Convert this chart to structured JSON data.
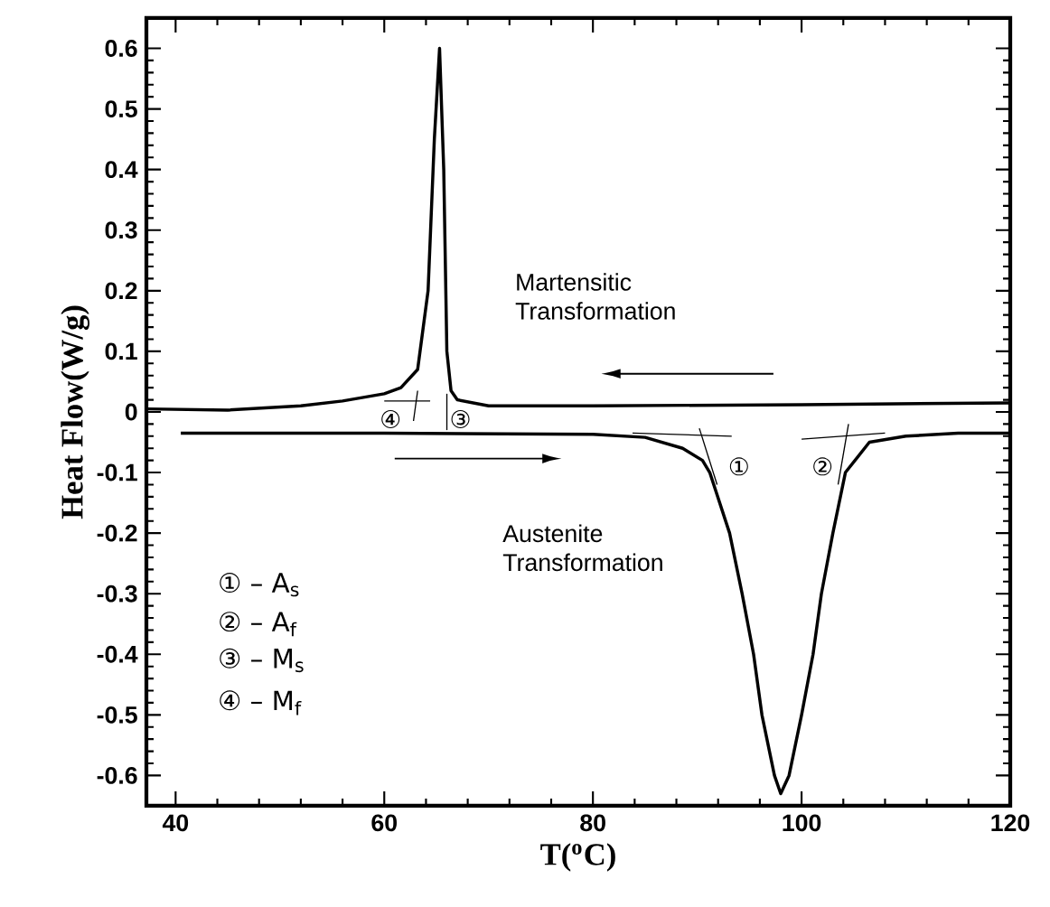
{
  "chart_data": {
    "type": "line",
    "xlabel": "T($^{o}$C)",
    "ylabel": "Heat Flow(W/g)",
    "xlim": [
      37.2,
      120
    ],
    "ylim": [
      -0.65,
      0.65
    ],
    "xticks": [
      40,
      60,
      80,
      100,
      120
    ],
    "yticks": [
      -0.6,
      -0.5,
      -0.4,
      -0.3,
      -0.2,
      -0.1,
      0,
      0.1,
      0.2,
      0.3,
      0.4,
      0.5,
      0.6
    ],
    "marker": "none",
    "line_style": "solid",
    "grid": false,
    "series": [
      {
        "color": "#000000",
        "x": [
          37.2,
          45,
          52,
          56,
          60,
          61.6,
          63.2,
          64.2,
          64.8,
          65.3,
          65.7,
          66,
          66.4,
          67,
          70,
          80,
          100,
          120
        ],
        "values": [
          0.005,
          0.003,
          0.01,
          0.018,
          0.03,
          0.04,
          0.07,
          0.2,
          0.45,
          0.6,
          0.4,
          0.1,
          0.035,
          0.02,
          0.01,
          0.01,
          0.012,
          0.015
        ]
      },
      {
        "color": "#000000",
        "x": [
          40.5,
          60,
          80,
          85,
          88.6,
          90.5,
          91.2,
          93.1,
          94.3,
          95.4,
          96.2,
          97.4,
          98,
          98.8,
          100,
          101.1,
          101.9,
          103,
          104.2,
          106.5,
          110,
          115,
          120
        ],
        "values": [
          -0.035,
          -0.035,
          -0.037,
          -0.042,
          -0.06,
          -0.08,
          -0.1,
          -0.2,
          -0.3,
          -0.4,
          -0.5,
          -0.6,
          -0.63,
          -0.6,
          -0.5,
          -0.4,
          -0.3,
          -0.2,
          -0.1,
          -0.05,
          -0.04,
          -0.035,
          -0.035
        ]
      },
      {
        "color": "#000000",
        "x": [
          60,
          64.4
        ],
        "values": [
          0.018,
          0.018
        ]
      },
      {
        "color": "#000000",
        "x": [
          63.2,
          62.8
        ],
        "values": [
          0.035,
          -0.015
        ]
      },
      {
        "color": "#000000",
        "x": [
          66,
          66
        ],
        "values": [
          0.03,
          -0.03
        ]
      },
      {
        "color": "#000000",
        "x": [
          83.8,
          93.3
        ],
        "values": [
          -0.035,
          -0.04
        ]
      },
      {
        "color": "#000000",
        "x": [
          90.2,
          91.9
        ],
        "values": [
          -0.027,
          -0.12
        ]
      },
      {
        "color": "#000000",
        "x": [
          104.5,
          103.5
        ],
        "values": [
          -0.02,
          -0.12
        ]
      },
      {
        "color": "#000000",
        "x": [
          100,
          108
        ],
        "values": [
          -0.045,
          -0.035
        ]
      }
    ],
    "annotations": [
      "①",
      "②",
      "③",
      "④",
      "Martensitic\nTransformation",
      "Austenite\nTransformation",
      "① – A$_{s}$",
      "② – A$_{f}$",
      "③ – M$_{s}$",
      "④ – M$_{f}$"
    ]
  }
}
